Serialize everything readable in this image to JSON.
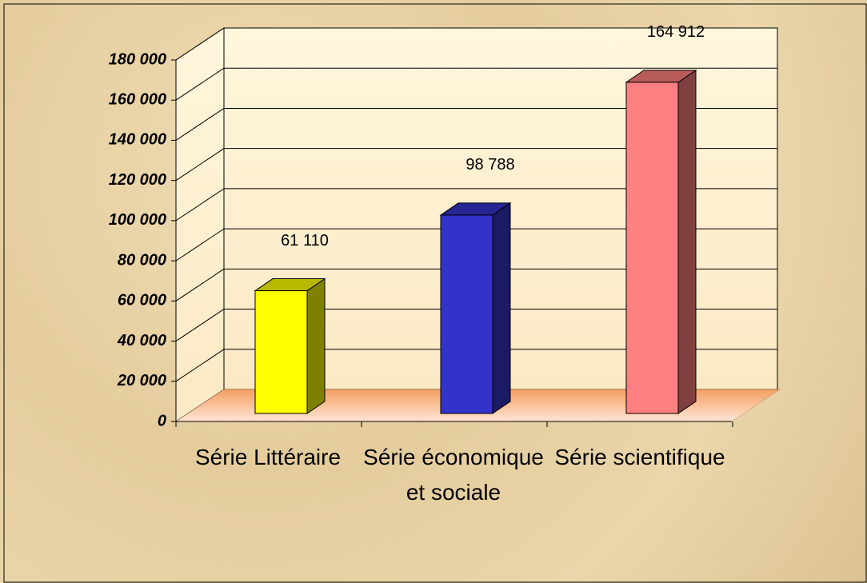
{
  "chart_data": {
    "type": "bar3d",
    "categories": [
      "Série Littéraire",
      "Série économique et sociale",
      "Série scientifique"
    ],
    "values": [
      61110,
      98788,
      164912
    ],
    "value_labels": [
      "61 110",
      "98 788",
      "164 912"
    ],
    "colors": [
      "#ffff00",
      "#3333cc",
      "#ff8080"
    ],
    "ylim": [
      0,
      180000
    ],
    "yticks": [
      0,
      {
        "value": 20000,
        "label": "20 000"
      },
      {
        "value": 40000,
        "label": "40 000"
      },
      {
        "value": 60000,
        "label": "60 000"
      },
      {
        "value": 80000,
        "label": "80 000"
      },
      {
        "value": 100000,
        "label": "100 000"
      },
      {
        "value": 120000,
        "label": "120 000"
      },
      {
        "value": 140000,
        "label": "140 000"
      },
      {
        "value": 160000,
        "label": "160 000"
      },
      {
        "value": 180000,
        "label": "180 000"
      }
    ],
    "grid": true
  }
}
